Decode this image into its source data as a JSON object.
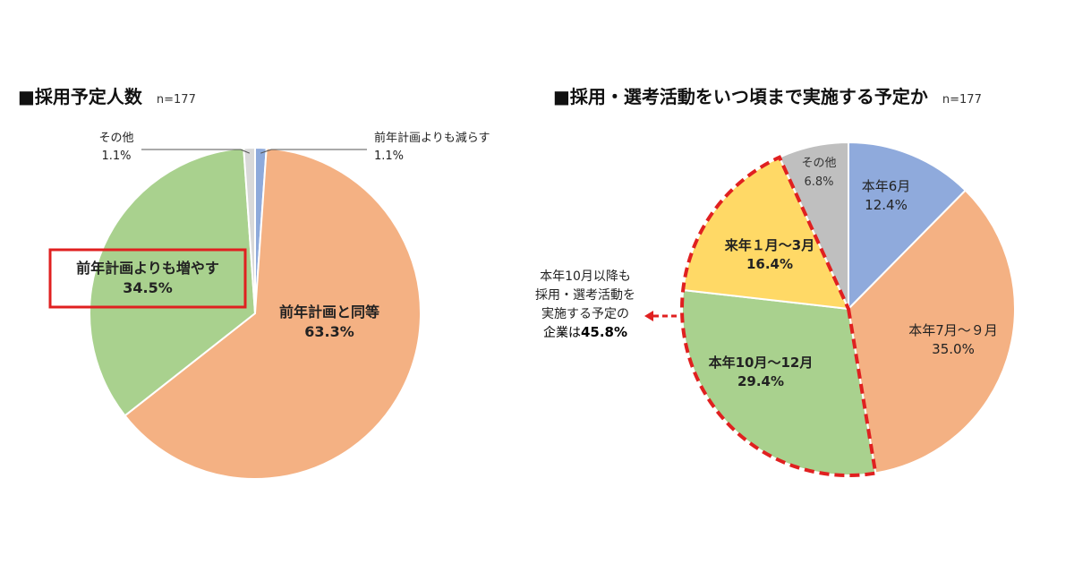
{
  "chart_data": [
    {
      "type": "pie",
      "title": "■採用予定人数",
      "n_label": "n=177",
      "slices": [
        {
          "label": "前年計画よりも減らす",
          "value": 1.1,
          "value_label": "1.1%",
          "color": "#8eaadb"
        },
        {
          "label": "前年計画と同等",
          "value": 63.3,
          "value_label": "63.3%",
          "color": "#f4b183"
        },
        {
          "label": "前年計画よりも増やす",
          "value": 34.5,
          "value_label": "34.5%",
          "color": "#a9d18e",
          "highlighted": true
        },
        {
          "label": "その他",
          "value": 1.1,
          "value_label": "1.1%",
          "color": "#d9d9d9"
        }
      ]
    },
    {
      "type": "pie",
      "title": "■採用・選考活動をいつ頃まで実施する予定か",
      "n_label": "n=177",
      "slices": [
        {
          "label": "本年6月",
          "value": 12.4,
          "value_label": "12.4%",
          "color": "#8faadc"
        },
        {
          "label": "本年7月～９月",
          "value": 35.0,
          "value_label": "35.0%",
          "color": "#f4b183"
        },
        {
          "label": "本年10月～12月",
          "value": 29.4,
          "value_label": "29.4%",
          "color": "#a9d18e",
          "highlighted": true
        },
        {
          "label": "来年１月～3月",
          "value": 16.4,
          "value_label": "16.4%",
          "color": "#ffd966",
          "highlighted": true
        },
        {
          "label": "その他",
          "value": 6.8,
          "value_label": "6.8%",
          "color": "#bfbfbf"
        }
      ],
      "annotation": {
        "lines": [
          "本年10月以降も",
          "採用・選考活動を",
          "実施する予定の",
          "企業は45.8%"
        ]
      }
    }
  ]
}
